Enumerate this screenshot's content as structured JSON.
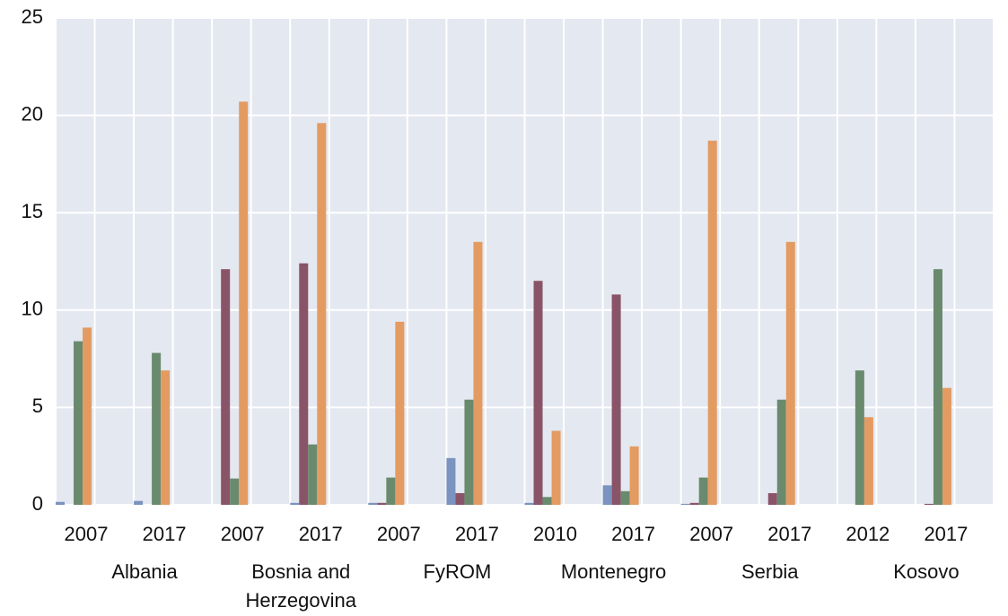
{
  "chart_data": {
    "type": "bar",
    "categories": [
      "2007",
      "2017",
      "2007",
      "2017",
      "2007",
      "2017",
      "2010",
      "2017",
      "2007",
      "2017",
      "2012",
      "2017"
    ],
    "groups": [
      "Albania",
      "Bosnia and Herzegovina",
      "FyROM",
      "Montenegro",
      "Serbia",
      "Kosovo"
    ],
    "series": [
      {
        "color": "#7b93bf",
        "values": [
          0.15,
          0.2,
          0,
          0.1,
          0.1,
          2.4,
          0.1,
          1.0,
          0.05,
          0,
          0,
          0
        ]
      },
      {
        "color": "#8a5468",
        "values": [
          0,
          0,
          12.1,
          12.4,
          0.1,
          0.6,
          11.5,
          10.8,
          0.1,
          0.6,
          0,
          0.05
        ]
      },
      {
        "color": "#6a8a6e",
        "values": [
          8.4,
          7.8,
          1.35,
          3.1,
          1.4,
          5.4,
          0.4,
          0.7,
          1.4,
          5.4,
          6.9,
          12.1
        ]
      },
      {
        "color": "#e39b62",
        "values": [
          9.1,
          6.9,
          20.7,
          19.6,
          9.4,
          13.5,
          3.8,
          3.0,
          18.7,
          13.5,
          4.5,
          6.0
        ]
      }
    ],
    "ylim": [
      0,
      25
    ],
    "yticks": [
      0,
      5,
      10,
      15,
      20,
      25
    ],
    "grid": true
  }
}
